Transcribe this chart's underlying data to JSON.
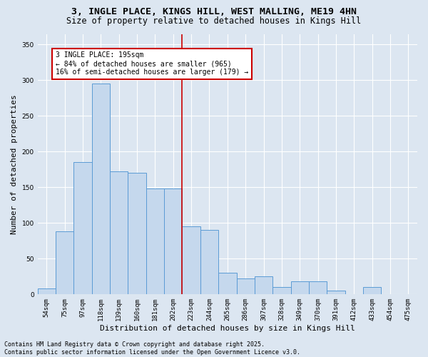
{
  "title_line1": "3, INGLE PLACE, KINGS HILL, WEST MALLING, ME19 4HN",
  "title_line2": "Size of property relative to detached houses in Kings Hill",
  "xlabel": "Distribution of detached houses by size in Kings Hill",
  "ylabel": "Number of detached properties",
  "annotation_line1": "3 INGLE PLACE: 195sqm",
  "annotation_line2": "← 84% of detached houses are smaller (965)",
  "annotation_line3": "16% of semi-detached houses are larger (179) →",
  "footer_line1": "Contains HM Land Registry data © Crown copyright and database right 2025.",
  "footer_line2": "Contains public sector information licensed under the Open Government Licence v3.0.",
  "bar_labels": [
    "54sqm",
    "75sqm",
    "97sqm",
    "118sqm",
    "139sqm",
    "160sqm",
    "181sqm",
    "202sqm",
    "223sqm",
    "244sqm",
    "265sqm",
    "286sqm",
    "307sqm",
    "328sqm",
    "349sqm",
    "370sqm",
    "391sqm",
    "412sqm",
    "433sqm",
    "454sqm",
    "475sqm"
  ],
  "bar_heights": [
    8,
    88,
    185,
    295,
    172,
    170,
    148,
    148,
    95,
    90,
    30,
    22,
    25,
    10,
    18,
    18,
    5,
    0,
    10,
    0,
    0
  ],
  "bar_color": "#c5d8ed",
  "bar_edge_color": "#5b9bd5",
  "vline_x": 7.5,
  "vline_color": "#cc0000",
  "background_color": "#dce6f1",
  "plot_background_color": "#dce6f1",
  "ylim": [
    0,
    365
  ],
  "yticks": [
    0,
    50,
    100,
    150,
    200,
    250,
    300,
    350
  ],
  "annotation_box_facecolor": "#ffffff",
  "annotation_box_edgecolor": "#cc0000",
  "title_fontsize": 9.5,
  "subtitle_fontsize": 8.5,
  "tick_fontsize": 6.5,
  "label_fontsize": 8,
  "annot_fontsize": 7,
  "footer_fontsize": 6
}
